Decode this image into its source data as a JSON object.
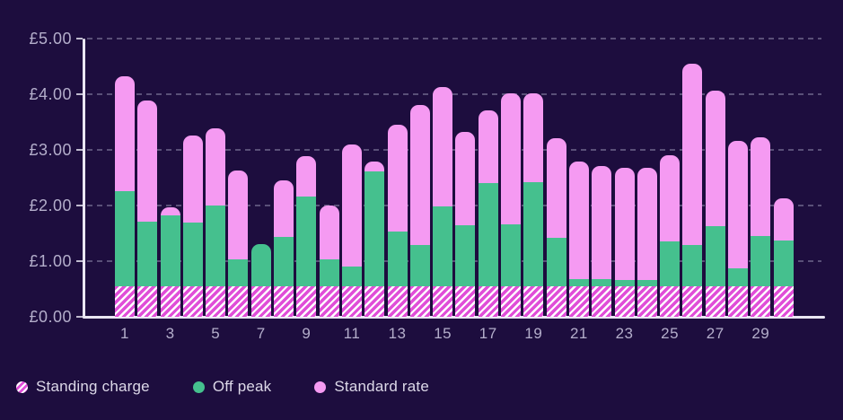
{
  "chart_data": {
    "type": "bar",
    "stacked": true,
    "currency": "£",
    "ylim": [
      0,
      5
    ],
    "grid": "dashed-horizontal",
    "legend_position": "bottom-left",
    "x": [
      1,
      2,
      3,
      4,
      5,
      6,
      7,
      8,
      9,
      10,
      11,
      12,
      13,
      14,
      15,
      16,
      17,
      18,
      19,
      20,
      21,
      22,
      23,
      24,
      25,
      26,
      27,
      28,
      29,
      30
    ],
    "x_tick_labels": [
      "1",
      "3",
      "5",
      "7",
      "9",
      "11",
      "13",
      "15",
      "17",
      "19",
      "21",
      "23",
      "25",
      "27",
      "29"
    ],
    "y_ticks": [
      {
        "value": 0,
        "label": "£0.00"
      },
      {
        "value": 1,
        "label": "£1.00"
      },
      {
        "value": 2,
        "label": "£2.00"
      },
      {
        "value": 3,
        "label": "£3.00"
      },
      {
        "value": 4,
        "label": "£4.00"
      },
      {
        "value": 5,
        "label": "£5.00"
      }
    ],
    "series": [
      {
        "name": "Standing charge",
        "style": "hatched",
        "values": [
          0.55,
          0.55,
          0.55,
          0.55,
          0.55,
          0.55,
          0.55,
          0.55,
          0.55,
          0.55,
          0.55,
          0.55,
          0.55,
          0.55,
          0.55,
          0.55,
          0.55,
          0.55,
          0.55,
          0.55,
          0.55,
          0.55,
          0.55,
          0.55,
          0.55,
          0.55,
          0.55,
          0.55,
          0.55,
          0.55
        ]
      },
      {
        "name": "Off peak",
        "style": "solid",
        "values": [
          1.71,
          1.16,
          1.28,
          1.14,
          1.45,
          0.48,
          0.75,
          0.88,
          1.62,
          0.49,
          0.36,
          2.06,
          0.99,
          0.74,
          1.43,
          1.1,
          1.85,
          1.11,
          1.87,
          0.87,
          0.13,
          0.13,
          0.12,
          0.12,
          0.8,
          0.74,
          1.08,
          0.32,
          0.9,
          0.83
        ]
      },
      {
        "name": "Standard rate",
        "style": "solid",
        "values": [
          2.06,
          2.17,
          0.15,
          1.56,
          1.39,
          1.59,
          0.0,
          1.02,
          0.72,
          0.97,
          2.19,
          0.18,
          1.92,
          2.51,
          2.15,
          1.67,
          1.31,
          2.36,
          1.6,
          1.79,
          2.12,
          2.03,
          2.02,
          2.01,
          1.55,
          3.26,
          2.44,
          2.29,
          1.78,
          0.75
        ]
      }
    ]
  },
  "colors": {
    "background": "#1d0d3e",
    "off_peak_green": "#45c08e",
    "standard_rate_pink": "#f59af2",
    "standing_charge_magenta": "#e04ed8",
    "standing_charge_white": "#ffffff",
    "axis_line": "#e9e6f2",
    "grid_line": "#8c86a8",
    "tick_label": "#b4aecb",
    "legend_text": "#dcd8e8"
  }
}
